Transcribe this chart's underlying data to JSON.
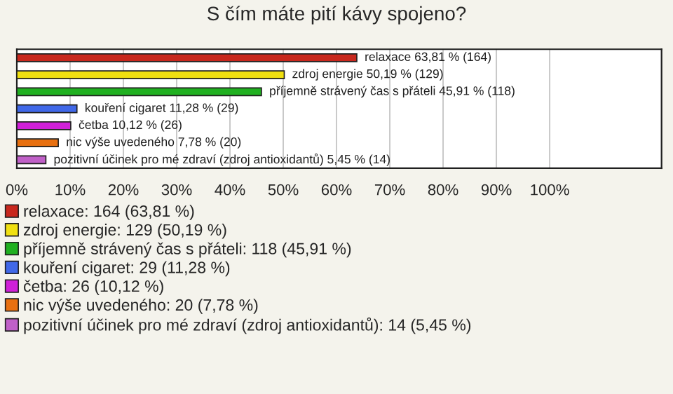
{
  "chart_data": {
    "type": "bar",
    "orientation": "horizontal",
    "title": "S čím máte pití kávy spojeno?",
    "categories": [
      null,
      null,
      null,
      null,
      null,
      null,
      null
    ],
    "series": [
      {
        "name": "relaxace: 164 (63,81 %)",
        "color": "#c8281e",
        "values": [
          63.81,
          null,
          null,
          null,
          null,
          null,
          null
        ],
        "value_labels": [
          "relaxace 63,81 % (164)",
          null,
          null,
          null,
          null,
          null,
          null
        ]
      },
      {
        "name": "zdroj energie: 129 (50,19 %)",
        "color": "#f0e010",
        "values": [
          null,
          50.19,
          null,
          null,
          null,
          null,
          null
        ],
        "value_labels": [
          null,
          "zdroj energie 50,19 % (129)",
          null,
          null,
          null,
          null,
          null
        ]
      },
      {
        "name": "příjemně strávený čas s přáteli: 118 (45,91 %)",
        "color": "#20b020",
        "values": [
          null,
          null,
          45.91,
          null,
          null,
          null,
          null
        ],
        "value_labels": [
          null,
          null,
          "příjemně strávený čas s přáteli 45,91 % (118)",
          null,
          null,
          null,
          null
        ]
      },
      {
        "name": "kouření cigaret: 29 (11,28 %)",
        "color": "#4068e8",
        "values": [
          null,
          null,
          null,
          11.28,
          null,
          null,
          null
        ],
        "value_labels": [
          null,
          null,
          null,
          "kouření cigaret 11,28 % (29)",
          null,
          null,
          null
        ]
      },
      {
        "name": "četba: 26 (10,12 %)",
        "color": "#d020d8",
        "values": [
          null,
          null,
          null,
          null,
          10.12,
          null,
          null
        ],
        "value_labels": [
          null,
          null,
          null,
          null,
          "četba 10,12 % (26)",
          null,
          null
        ]
      },
      {
        "name": "nic výše uvedeného: 20 (7,78 %)",
        "color": "#e87010",
        "values": [
          null,
          null,
          null,
          null,
          null,
          7.78,
          null
        ],
        "value_labels": [
          null,
          null,
          null,
          null,
          null,
          "nic výše uvedeného 7,78 % (20)",
          null
        ]
      },
      {
        "name": "pozitivní účinek pro mé zdraví (zdroj antioxidantů): 14 (5,45 %)",
        "color": "#c060c8",
        "values": [
          null,
          null,
          null,
          null,
          null,
          null,
          5.45
        ],
        "value_labels": [
          null,
          null,
          null,
          null,
          null,
          null,
          "pozitivní účinek pro mé zdraví (zdroj antioxidantů) 5,45 % (14)"
        ]
      }
    ],
    "xlim": [
      0,
      121
    ],
    "xticks": [
      {
        "value": 0,
        "label": "0%"
      },
      {
        "value": 10,
        "label": "10%"
      },
      {
        "value": 20,
        "label": "20%"
      },
      {
        "value": 30,
        "label": "30%"
      },
      {
        "value": 40,
        "label": "40%"
      },
      {
        "value": 50,
        "label": "50%"
      },
      {
        "value": 60,
        "label": "60%"
      },
      {
        "value": 70,
        "label": "70%"
      },
      {
        "value": 80,
        "label": "80%"
      },
      {
        "value": 90,
        "label": "90%"
      },
      {
        "value": 100,
        "label": "100%"
      }
    ],
    "grid": "x",
    "legend": "bottom",
    "tick_labels": "x"
  }
}
